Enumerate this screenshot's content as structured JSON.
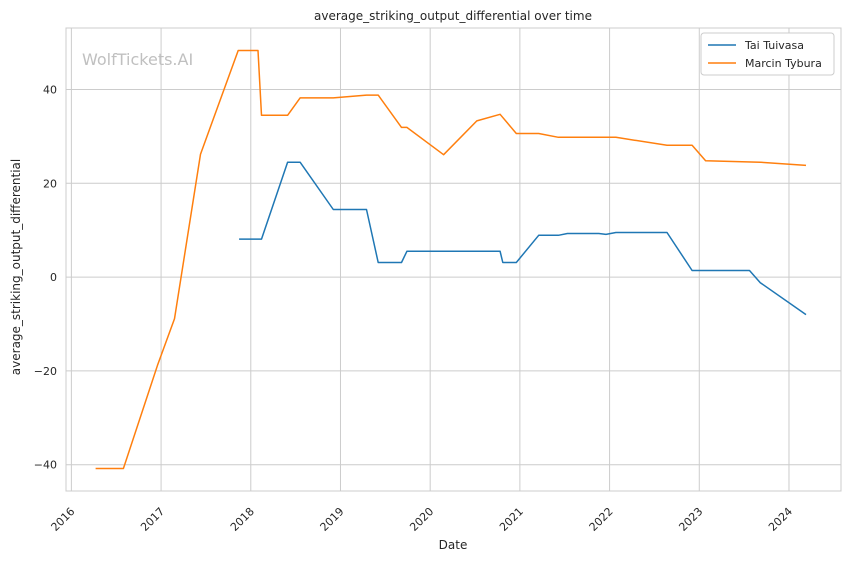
{
  "chart_data": {
    "type": "line",
    "title": "average_striking_output_differential over time",
    "xlabel": "Date",
    "ylabel": "average_striking_output_differential",
    "watermark": "WolfTickets.AI",
    "xlim": [
      2015.94,
      2024.58
    ],
    "ylim": [
      -45.6,
      53.1
    ],
    "x_ticks": [
      2016,
      2017,
      2018,
      2019,
      2020,
      2021,
      2022,
      2023,
      2024
    ],
    "x_tick_labels": [
      "2016",
      "2017",
      "2018",
      "2019",
      "2020",
      "2021",
      "2022",
      "2023",
      "2024"
    ],
    "y_ticks": [
      -40,
      -20,
      0,
      20,
      40
    ],
    "y_tick_labels": [
      "−40",
      "−20",
      "0",
      "20",
      "40"
    ],
    "grid": true,
    "legend_position": "top-right",
    "series": [
      {
        "name": "Tai Tuivasa",
        "color": "#1f77b4",
        "x": [
          2017.87,
          2018.12,
          2018.41,
          2018.55,
          2018.92,
          2019.29,
          2019.42,
          2019.68,
          2019.74,
          2020.78,
          2020.81,
          2020.96,
          2021.21,
          2021.43,
          2021.53,
          2021.88,
          2021.96,
          2022.07,
          2022.64,
          2022.92,
          2023.56,
          2023.68,
          2024.19
        ],
        "y": [
          8.1,
          8.1,
          24.5,
          24.5,
          14.4,
          14.4,
          3.1,
          3.1,
          5.5,
          5.5,
          3.1,
          3.1,
          8.9,
          8.9,
          9.3,
          9.3,
          9.1,
          9.5,
          9.5,
          1.4,
          1.4,
          -1.2,
          -8.0
        ]
      },
      {
        "name": "Marcin Tybura",
        "color": "#ff7f0e",
        "x": [
          2016.27,
          2016.58,
          2016.96,
          2017.15,
          2017.44,
          2017.86,
          2018.08,
          2018.12,
          2018.41,
          2018.55,
          2018.92,
          2019.29,
          2019.42,
          2019.68,
          2019.74,
          2020.15,
          2020.52,
          2020.78,
          2020.96,
          2021.21,
          2021.43,
          2021.88,
          2022.07,
          2022.64,
          2022.92,
          2023.07,
          2023.68,
          2024.19
        ],
        "y": [
          -40.8,
          -40.8,
          -18.8,
          -8.9,
          26.2,
          48.3,
          48.3,
          34.5,
          34.5,
          38.2,
          38.2,
          38.8,
          38.8,
          31.9,
          31.9,
          26.1,
          33.3,
          34.7,
          30.6,
          30.6,
          29.8,
          29.8,
          29.8,
          28.1,
          28.1,
          24.8,
          24.5,
          23.8
        ]
      }
    ]
  }
}
